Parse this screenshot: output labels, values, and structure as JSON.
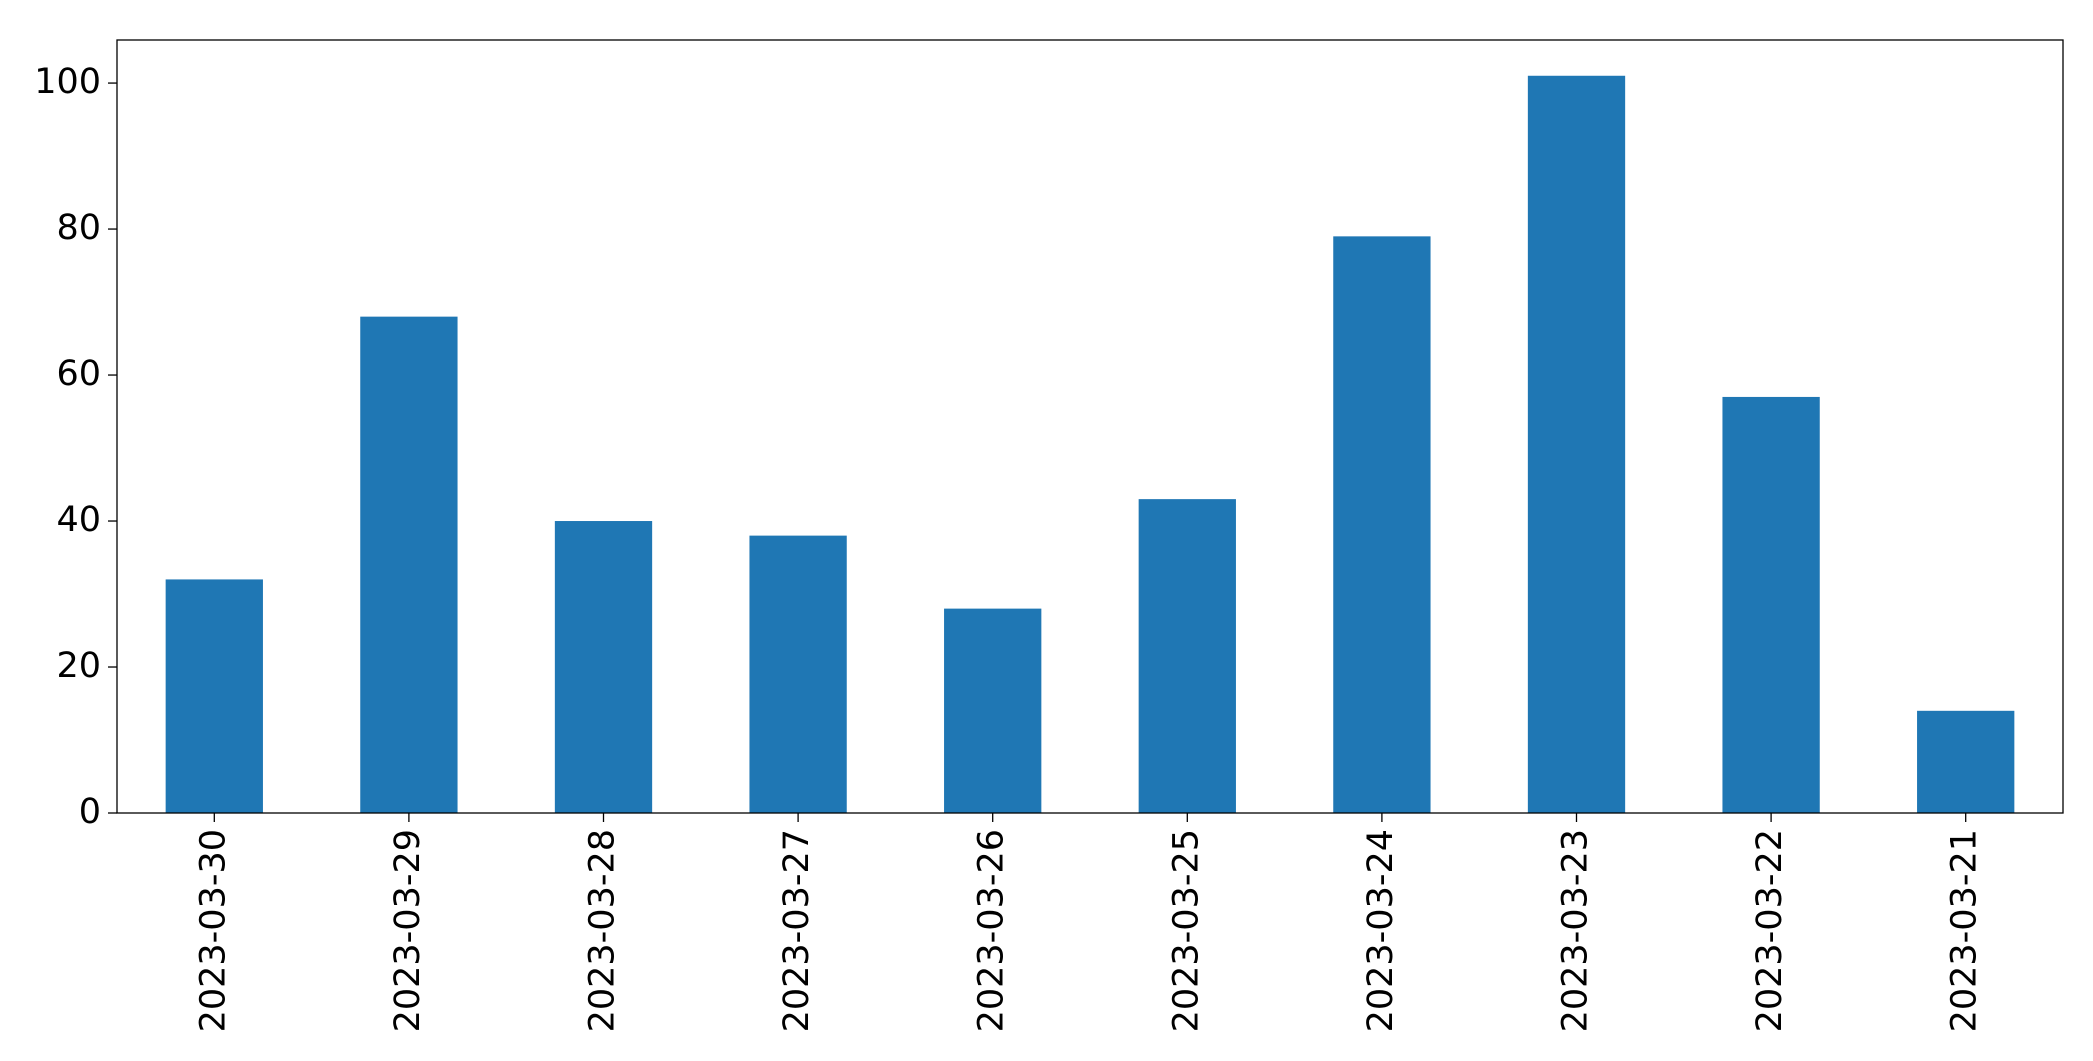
{
  "chart_data": {
    "type": "bar",
    "categories": [
      "2023-03-30",
      "2023-03-29",
      "2023-03-28",
      "2023-03-27",
      "2023-03-26",
      "2023-03-25",
      "2023-03-24",
      "2023-03-23",
      "2023-03-22",
      "2023-03-21"
    ],
    "values": [
      32,
      68,
      40,
      38,
      28,
      43,
      79,
      101,
      57,
      14
    ],
    "color": "#1f77b4",
    "ylim": [
      0,
      105.9
    ],
    "yticks": [
      0,
      20,
      40,
      60,
      80,
      100
    ],
    "grid": false
  }
}
